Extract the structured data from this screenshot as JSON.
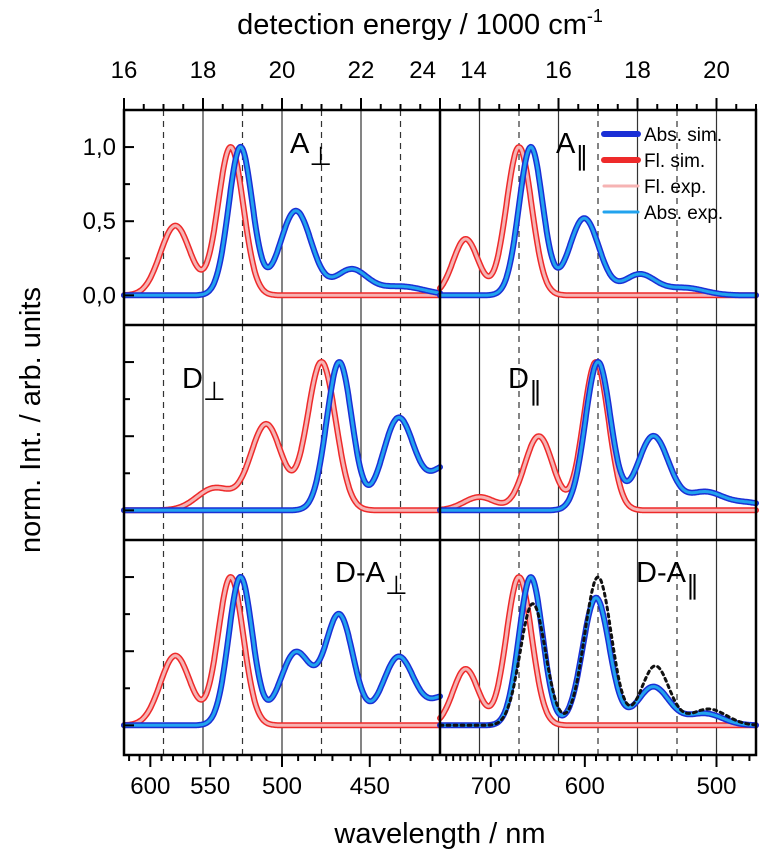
{
  "chart_data": {
    "type": "line",
    "title": "",
    "top_axis_label": {
      "main": "detection energy / 1000 cm",
      "sup": "-1"
    },
    "bottom_axis_label": "wavelength / nm",
    "y_axis_label": "norm. Int. / arb. units",
    "y_ticks": [
      "1,0",
      "0,5",
      "0,0"
    ],
    "y_range": [
      -0.2,
      1.25
    ],
    "colors": {
      "abs_sim": "#1a2fd6",
      "fl_sim": "#ee2a2a",
      "fl_exp": "#f6b3b3",
      "abs_exp": "#22a3ee",
      "dotted": "#111111"
    },
    "legend": {
      "abs_sim": "Abs. sim.",
      "fl_sim": "Fl. sim.",
      "fl_exp": "Fl. exp.",
      "abs_exp": "Abs. exp."
    },
    "columns": [
      {
        "name": "perpendicular",
        "energy_range": [
          16,
          24
        ],
        "top_ticks": [
          "16",
          "18",
          "20",
          "22",
          "24"
        ],
        "bottom_ticks": [
          "600",
          "550",
          "500",
          "450"
        ],
        "solid_gridlines_energy": [
          18,
          20,
          22
        ],
        "dashed_gridlines_energy": [
          17,
          19,
          21,
          23
        ]
      },
      {
        "name": "parallel",
        "energy_range": [
          13,
          21
        ],
        "top_ticks": [
          "14",
          "16",
          "18",
          "20"
        ],
        "bottom_ticks": [
          "700",
          "600",
          "500"
        ],
        "solid_gridlines_energy": [
          14,
          16,
          18,
          20
        ],
        "dashed_gridlines_energy": [
          15,
          17,
          19
        ]
      }
    ],
    "panels": [
      {
        "id": "A-perp",
        "base": "A",
        "sub": "⊥",
        "col": 0,
        "row": 0,
        "fl": [
          {
            "c": 18.7,
            "a": 1.0,
            "w": 0.32
          },
          {
            "c": 17.3,
            "a": 0.47,
            "w": 0.38
          }
        ],
        "abs": [
          {
            "c": 18.95,
            "a": 1.0,
            "w": 0.3
          },
          {
            "c": 20.35,
            "a": 0.57,
            "w": 0.4
          },
          {
            "c": 21.75,
            "a": 0.17,
            "w": 0.4
          },
          {
            "c": 23.0,
            "a": 0.06,
            "w": 0.6
          }
        ]
      },
      {
        "id": "A-par",
        "base": "A",
        "sub": "∥",
        "col": 1,
        "row": 0,
        "fl": [
          {
            "c": 15.0,
            "a": 1.0,
            "w": 0.32
          },
          {
            "c": 13.65,
            "a": 0.38,
            "w": 0.32
          }
        ],
        "abs": [
          {
            "c": 15.3,
            "a": 1.0,
            "w": 0.3
          },
          {
            "c": 16.65,
            "a": 0.52,
            "w": 0.38
          },
          {
            "c": 18.05,
            "a": 0.14,
            "w": 0.4
          },
          {
            "c": 19.2,
            "a": 0.05,
            "w": 0.5
          }
        ]
      },
      {
        "id": "D-perp",
        "base": "D",
        "sub": "⊥",
        "col": 0,
        "row": 1,
        "fl": [
          {
            "c": 21.0,
            "a": 1.0,
            "w": 0.36
          },
          {
            "c": 19.6,
            "a": 0.58,
            "w": 0.4
          },
          {
            "c": 18.3,
            "a": 0.15,
            "w": 0.45
          }
        ],
        "abs": [
          {
            "c": 21.45,
            "a": 1.0,
            "w": 0.32
          },
          {
            "c": 22.95,
            "a": 0.62,
            "w": 0.4
          },
          {
            "c": 24.2,
            "a": 0.3,
            "w": 0.45
          }
        ]
      },
      {
        "id": "D-par",
        "base": "D",
        "sub": "∥",
        "col": 1,
        "row": 1,
        "fl": [
          {
            "c": 16.95,
            "a": 1.0,
            "w": 0.32
          },
          {
            "c": 15.5,
            "a": 0.5,
            "w": 0.36
          },
          {
            "c": 14.0,
            "a": 0.09,
            "w": 0.4
          }
        ],
        "abs": [
          {
            "c": 17.0,
            "a": 1.0,
            "w": 0.32
          },
          {
            "c": 18.4,
            "a": 0.5,
            "w": 0.4
          },
          {
            "c": 19.7,
            "a": 0.12,
            "w": 0.45
          },
          {
            "c": 20.8,
            "a": 0.05,
            "w": 0.5
          }
        ]
      },
      {
        "id": "DA-perp",
        "base": "D-A",
        "sub": "⊥",
        "col": 0,
        "row": 2,
        "fl": [
          {
            "c": 18.7,
            "a": 1.0,
            "w": 0.32
          },
          {
            "c": 17.3,
            "a": 0.47,
            "w": 0.38
          }
        ],
        "abs": [
          {
            "c": 18.95,
            "a": 1.0,
            "w": 0.3
          },
          {
            "c": 20.35,
            "a": 0.49,
            "w": 0.4
          },
          {
            "c": 21.45,
            "a": 0.74,
            "w": 0.36
          },
          {
            "c": 22.95,
            "a": 0.46,
            "w": 0.4
          },
          {
            "c": 24.2,
            "a": 0.2,
            "w": 0.45
          }
        ]
      },
      {
        "id": "DA-par",
        "base": "D-A",
        "sub": "∥",
        "col": 1,
        "row": 2,
        "fl": [
          {
            "c": 15.0,
            "a": 1.0,
            "w": 0.32
          },
          {
            "c": 13.65,
            "a": 0.38,
            "w": 0.32
          }
        ],
        "abs": [
          {
            "c": 15.3,
            "a": 1.0,
            "w": 0.3
          },
          {
            "c": 16.95,
            "a": 0.86,
            "w": 0.34
          },
          {
            "c": 18.4,
            "a": 0.26,
            "w": 0.4
          },
          {
            "c": 19.7,
            "a": 0.08,
            "w": 0.45
          }
        ],
        "dotted": [
          {
            "c": 15.35,
            "a": 0.82,
            "w": 0.32
          },
          {
            "c": 17.0,
            "a": 1.0,
            "w": 0.34
          },
          {
            "c": 18.45,
            "a": 0.4,
            "w": 0.35
          },
          {
            "c": 19.8,
            "a": 0.11,
            "w": 0.45
          }
        ]
      }
    ]
  }
}
